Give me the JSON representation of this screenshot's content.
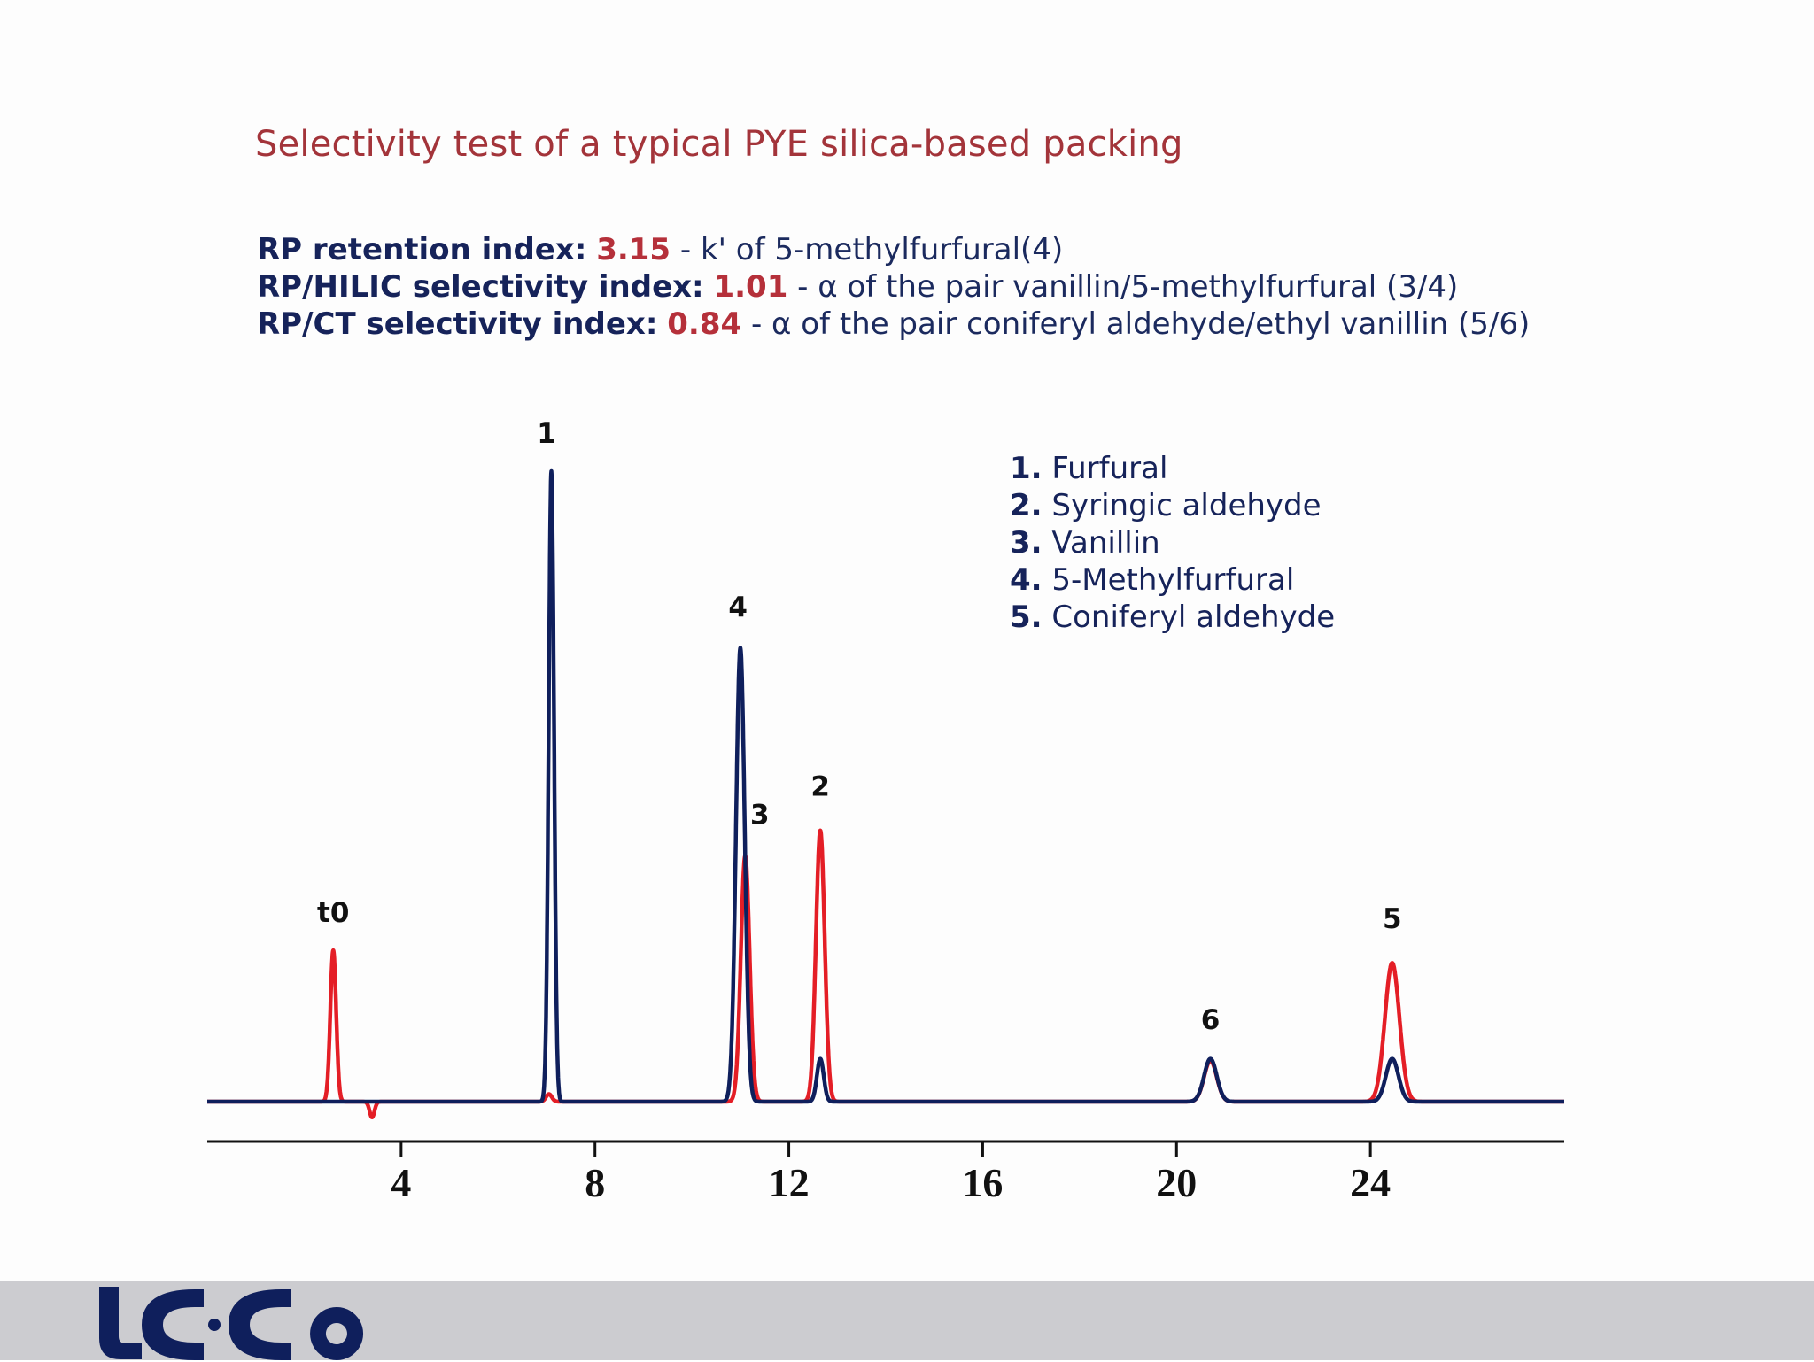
{
  "title": "Selectivity test of a typical PYE silica-based packing",
  "indices": [
    {
      "label": "RP retention index:",
      "value": "3.15",
      "desc": " - k' of 5-methylfurfural(4)"
    },
    {
      "label": "RP/HILIC selectivity index:",
      "value": "1.01",
      "desc": " - α of the pair vanillin/5-methylfurfural (3/4)"
    },
    {
      "label": "RP/CT selectivity index:",
      "value": "0.84",
      "desc": " - α of the pair coniferyl aldehyde/ethyl vanillin (5/6)"
    }
  ],
  "colors": {
    "title": "#a3343a",
    "blue_trace": "#0f1f5c",
    "red_trace": "#e41e26",
    "value": "#b5303a",
    "footer": "#ccccd0",
    "logo": "#0f1f5c"
  },
  "logo_text": "LC·Co",
  "chart_data": {
    "type": "line",
    "xlim": [
      0,
      28
    ],
    "ticks": [
      4,
      8,
      12,
      16,
      20,
      24
    ],
    "ylim": [
      0,
      1.0
    ],
    "series": [
      {
        "color": "#e41e26",
        "peaks": [
          {
            "x": 2.6,
            "h": 0.24,
            "w": 0.06
          },
          {
            "x": 3.4,
            "h": -0.025,
            "w": 0.05
          },
          {
            "x": 7.05,
            "h": 0.012,
            "w": 0.06
          },
          {
            "x": 11.1,
            "h": 0.39,
            "w": 0.09
          },
          {
            "x": 12.65,
            "h": 0.43,
            "w": 0.09
          },
          {
            "x": 20.7,
            "h": 0.065,
            "w": 0.13
          },
          {
            "x": 24.45,
            "h": 0.22,
            "w": 0.15
          }
        ]
      },
      {
        "color": "#0f1f5c",
        "peaks": [
          {
            "x": 7.1,
            "h": 1.0,
            "w": 0.055
          },
          {
            "x": 11.0,
            "h": 0.72,
            "w": 0.09
          },
          {
            "x": 12.65,
            "h": 0.068,
            "w": 0.07
          },
          {
            "x": 20.7,
            "h": 0.068,
            "w": 0.13
          },
          {
            "x": 24.45,
            "h": 0.068,
            "w": 0.13
          }
        ]
      }
    ],
    "peak_labels": [
      {
        "text": "t0",
        "x": 2.6,
        "y": 0.285
      },
      {
        "text": "1",
        "x": 7.0,
        "y": 1.045
      },
      {
        "text": "4",
        "x": 10.95,
        "y": 0.77
      },
      {
        "text": "3",
        "x": 11.4,
        "y": 0.44
      },
      {
        "text": "2",
        "x": 12.65,
        "y": 0.485
      },
      {
        "text": "6",
        "x": 20.7,
        "y": 0.115
      },
      {
        "text": "5",
        "x": 24.45,
        "y": 0.275
      }
    ],
    "legend": [
      {
        "num": "1.",
        "name": "Furfural"
      },
      {
        "num": "2.",
        "name": "Syringic aldehyde"
      },
      {
        "num": "3.",
        "name": "Vanillin"
      },
      {
        "num": "4.",
        "name": "5-Methylfurfural"
      },
      {
        "num": "5.",
        "name": "Coniferyl aldehyde"
      }
    ]
  }
}
